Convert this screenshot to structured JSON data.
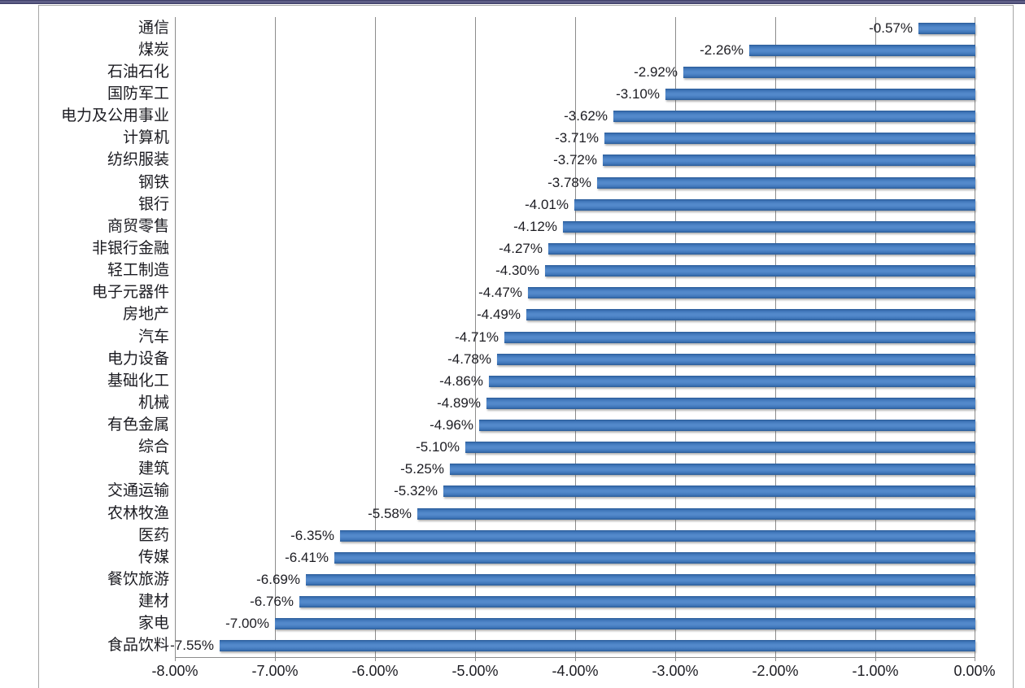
{
  "window": {
    "top_strip_color_dark": "#35355f",
    "top_strip_color_light": "#6b6b93"
  },
  "colors": {
    "chart_border": "#a6a6a6",
    "gridline": "#8c8c8c",
    "text": "#1c1c22",
    "bar_fill_highlight": "#5389cb",
    "bar_fill_mid": "#4077ba",
    "bar_fill_edge": "#2b5c98"
  },
  "chart_data": {
    "type": "bar",
    "orientation": "horizontal",
    "title": "",
    "xlabel": "",
    "ylabel": "",
    "legend": "none",
    "grid": "vertical",
    "xlim": [
      -8,
      0
    ],
    "categories": [
      "通信",
      "煤炭",
      "石油石化",
      "国防军工",
      "电力及公用事业",
      "计算机",
      "纺织服装",
      "钢铁",
      "银行",
      "商贸零售",
      "非银行金融",
      "轻工制造",
      "电子元器件",
      "房地产",
      "汽车",
      "电力设备",
      "基础化工",
      "机械",
      "有色金属",
      "综合",
      "建筑",
      "交通运输",
      "农林牧渔",
      "医药",
      "传媒",
      "餐饮旅游",
      "建材",
      "家电",
      "食品饮料"
    ],
    "values": [
      -0.57,
      -2.26,
      -2.92,
      -3.1,
      -3.62,
      -3.71,
      -3.72,
      -3.78,
      -4.01,
      -4.12,
      -4.27,
      -4.3,
      -4.47,
      -4.49,
      -4.71,
      -4.78,
      -4.86,
      -4.89,
      -4.96,
      -5.1,
      -5.25,
      -5.32,
      -5.58,
      -6.35,
      -6.41,
      -6.69,
      -6.76,
      -7.0,
      -7.55
    ],
    "data_labels": [
      "-0.57%",
      "-2.26%",
      "-2.92%",
      "-3.10%",
      "-3.62%",
      "-3.71%",
      "-3.72%",
      "-3.78%",
      "-4.01%",
      "-4.12%",
      "-4.27%",
      "-4.30%",
      "-4.47%",
      "-4.49%",
      "-4.71%",
      "-4.78%",
      "-4.86%",
      "-4.89%",
      "-4.96%",
      "-5.10%",
      "-5.25%",
      "-5.32%",
      "-5.58%",
      "-6.35%",
      "-6.41%",
      "-6.69%",
      "-6.76%",
      "-7.00%",
      "-7.55%"
    ],
    "x_tick_labels": [
      "-8.00%",
      "-7.00%",
      "-6.00%",
      "-5.00%",
      "-4.00%",
      "-3.00%",
      "-2.00%",
      "-1.00%",
      "0.00%"
    ],
    "x_tick_values": [
      -8,
      -7,
      -6,
      -5,
      -4,
      -3,
      -2,
      -1,
      0
    ]
  }
}
